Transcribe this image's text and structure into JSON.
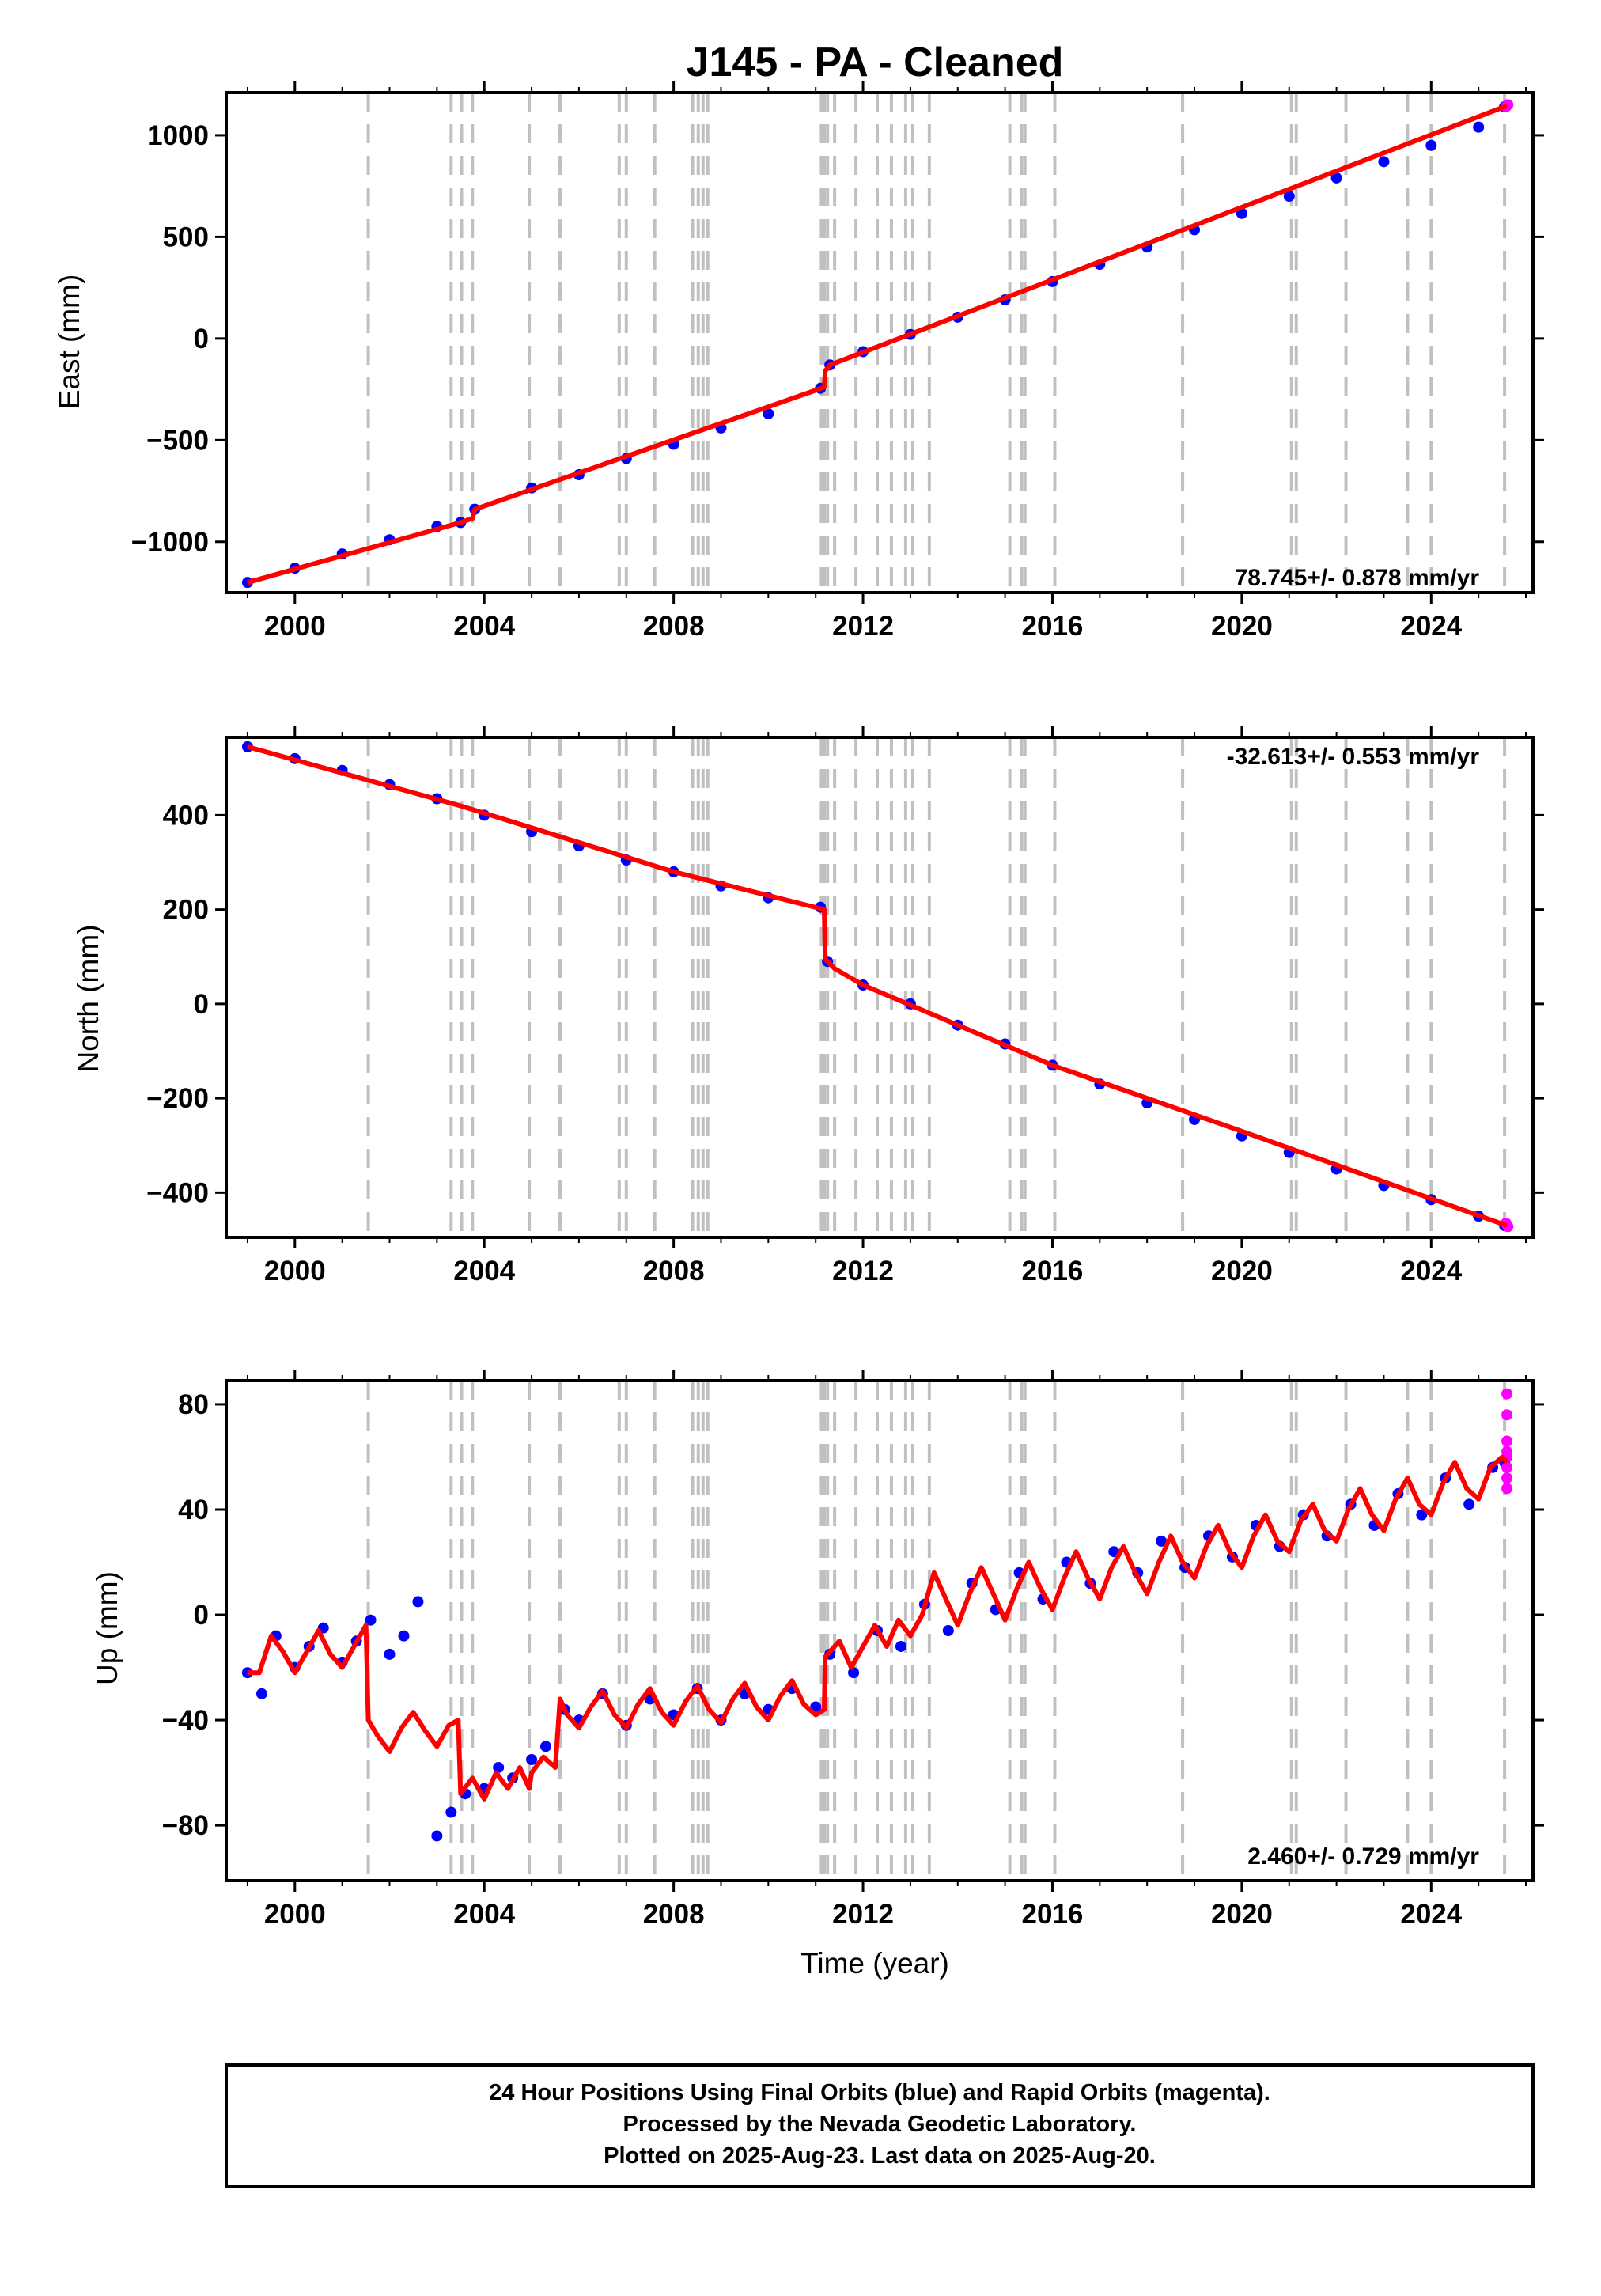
{
  "title": "J145  - PA - Cleaned",
  "footer": {
    "line1": "24 Hour Positions Using Final Orbits (blue) and Rapid Orbits (magenta).",
    "line2": "Processed by the Nevada Geodetic Laboratory.",
    "line3": "Plotted on 2025-Aug-23. Last data on 2025-Aug-20."
  },
  "colors": {
    "final_orbits": "#0000ff",
    "rapid_orbits": "#ff00ff",
    "model": "#ff0000",
    "event_lines": "#c0c0c0"
  },
  "chart_data": [
    {
      "type": "scatter",
      "id": "east",
      "title": "",
      "xlabel": "",
      "ylabel": "East (mm)",
      "xlim": [
        1998.55,
        2026.15
      ],
      "ylim": [
        -1250,
        1210
      ],
      "xticks": [
        2000,
        2004,
        2008,
        2012,
        2016,
        2020,
        2024
      ],
      "xtick_labels": [
        "2000",
        "2004",
        "2008",
        "2012",
        "2016",
        "2020",
        "2024"
      ],
      "yticks": [
        -1000,
        -500,
        0,
        500,
        1000
      ],
      "ytick_labels": [
        "−1000",
        "−500",
        "0",
        "500",
        "1000"
      ],
      "rate_label": "78.745+/- 0.878 mm/yr",
      "rate_position": "bottom-right",
      "grid": false,
      "model_line": {
        "color": "red",
        "x": [
          1999.0,
          2003.5,
          2003.75,
          2003.8,
          2011.18,
          2011.2,
          2011.3,
          2025.6
        ],
        "y": [
          -1200,
          -905,
          -885,
          -840,
          -240,
          -160,
          -130,
          1145
        ]
      },
      "final_orbits": {
        "color": "blue",
        "x": [
          1999.0,
          2000.0,
          2001.0,
          2002.0,
          2003.0,
          2003.5,
          2003.8,
          2005.0,
          2006.0,
          2007.0,
          2008.0,
          2009.0,
          2010.0,
          2011.1,
          2011.3,
          2012.0,
          2013.0,
          2014.0,
          2015.0,
          2016.0,
          2017.0,
          2018.0,
          2019.0,
          2020.0,
          2021.0,
          2022.0,
          2023.0,
          2024.0,
          2025.0,
          2025.55
        ],
        "y": [
          -1200,
          -1130,
          -1060,
          -990,
          -925,
          -905,
          -840,
          -735,
          -670,
          -590,
          -520,
          -440,
          -370,
          -245,
          -130,
          -65,
          20,
          105,
          190,
          280,
          365,
          450,
          535,
          615,
          700,
          790,
          870,
          950,
          1040,
          1140
        ]
      },
      "rapid_orbits": {
        "color": "magenta",
        "x": [
          2025.58,
          2025.62
        ],
        "y": [
          1140,
          1150
        ]
      }
    },
    {
      "type": "scatter",
      "id": "north",
      "title": "",
      "xlabel": "",
      "ylabel": "North (mm)",
      "xlim": [
        1998.55,
        2026.15
      ],
      "ylim": [
        -495,
        565
      ],
      "xticks": [
        2000,
        2004,
        2008,
        2012,
        2016,
        2020,
        2024
      ],
      "xtick_labels": [
        "2000",
        "2004",
        "2008",
        "2012",
        "2016",
        "2020",
        "2024"
      ],
      "yticks": [
        -400,
        -200,
        0,
        200,
        400
      ],
      "ytick_labels": [
        "−400",
        "−200",
        "0",
        "200",
        "400"
      ],
      "rate_label": "-32.613+/- 0.553 mm/yr",
      "rate_position": "top-right",
      "grid": false,
      "model_line": {
        "color": "red",
        "x": [
          1999.0,
          2003.5,
          2008.0,
          2011.18,
          2011.2,
          2011.4,
          2012.0,
          2016.0,
          2020.0,
          2025.6
        ],
        "y": [
          545,
          420,
          280,
          200,
          95,
          75,
          40,
          -130,
          -270,
          -470
        ]
      },
      "final_orbits": {
        "color": "blue",
        "x": [
          1999.0,
          2000.0,
          2001.0,
          2002.0,
          2003.0,
          2004.0,
          2005.0,
          2006.0,
          2007.0,
          2008.0,
          2009.0,
          2010.0,
          2011.1,
          2011.25,
          2012.0,
          2013.0,
          2014.0,
          2015.0,
          2016.0,
          2017.0,
          2018.0,
          2019.0,
          2020.0,
          2021.0,
          2022.0,
          2023.0,
          2024.0,
          2025.0,
          2025.55
        ],
        "y": [
          545,
          520,
          495,
          465,
          435,
          400,
          365,
          335,
          305,
          280,
          250,
          225,
          205,
          90,
          40,
          0,
          -45,
          -85,
          -130,
          -170,
          -210,
          -245,
          -280,
          -315,
          -350,
          -385,
          -415,
          -450,
          -470
        ]
      },
      "rapid_orbits": {
        "color": "magenta",
        "x": [
          2025.58,
          2025.62
        ],
        "y": [
          -465,
          -472
        ]
      }
    },
    {
      "type": "scatter",
      "id": "up",
      "title": "",
      "xlabel": "Time (year)",
      "ylabel": "Up (mm)",
      "xlim": [
        1998.55,
        2026.15
      ],
      "ylim": [
        -101,
        89
      ],
      "xticks": [
        2000,
        2004,
        2008,
        2012,
        2016,
        2020,
        2024
      ],
      "xtick_labels": [
        "2000",
        "2004",
        "2008",
        "2012",
        "2016",
        "2020",
        "2024"
      ],
      "yticks": [
        -80,
        -40,
        0,
        40,
        80
      ],
      "ytick_labels": [
        "−80",
        "−40",
        "0",
        "40",
        "80"
      ],
      "rate_label": "2.460+/- 0.729 mm/yr",
      "rate_position": "bottom-right",
      "grid": false,
      "model_line": {
        "color": "red",
        "x": [
          1999.0,
          1999.25,
          1999.5,
          1999.75,
          2000.0,
          2000.25,
          2000.5,
          2000.75,
          2001.0,
          2001.25,
          2001.5,
          2001.55,
          2001.75,
          2002.0,
          2002.25,
          2002.5,
          2002.75,
          2003.0,
          2003.25,
          2003.45,
          2003.5,
          2003.75,
          2004.0,
          2004.25,
          2004.5,
          2004.75,
          2004.95,
          2005.0,
          2005.25,
          2005.5,
          2005.6,
          2005.75,
          2006.0,
          2006.25,
          2006.5,
          2006.75,
          2007.0,
          2007.25,
          2007.5,
          2007.75,
          2008.0,
          2008.25,
          2008.5,
          2008.75,
          2009.0,
          2009.25,
          2009.5,
          2009.75,
          2010.0,
          2010.25,
          2010.5,
          2010.75,
          2011.0,
          2011.18,
          2011.2,
          2011.5,
          2011.75,
          2012.0,
          2012.25,
          2012.5,
          2012.75,
          2013.0,
          2013.25,
          2013.5,
          2013.75,
          2014.0,
          2014.25,
          2014.5,
          2014.75,
          2015.0,
          2015.25,
          2015.5,
          2015.75,
          2016.0,
          2016.25,
          2016.5,
          2016.75,
          2017.0,
          2017.25,
          2017.5,
          2017.75,
          2018.0,
          2018.25,
          2018.5,
          2018.75,
          2019.0,
          2019.25,
          2019.5,
          2019.75,
          2020.0,
          2020.25,
          2020.5,
          2020.75,
          2021.0,
          2021.25,
          2021.5,
          2021.75,
          2022.0,
          2022.25,
          2022.5,
          2022.75,
          2023.0,
          2023.25,
          2023.5,
          2023.75,
          2024.0,
          2024.25,
          2024.5,
          2024.75,
          2025.0,
          2025.25,
          2025.5,
          2025.6
        ],
        "y": [
          -22,
          -22,
          -8,
          -14,
          -22,
          -14,
          -6,
          -15,
          -20,
          -12,
          -4,
          -40,
          -46,
          -52,
          -43,
          -37,
          -44,
          -50,
          -42,
          -40,
          -68,
          -62,
          -70,
          -60,
          -66,
          -58,
          -66,
          -60,
          -54,
          -58,
          -32,
          -38,
          -43,
          -35,
          -29,
          -38,
          -43,
          -34,
          -28,
          -37,
          -42,
          -33,
          -27,
          -36,
          -41,
          -32,
          -26,
          -35,
          -40,
          -31,
          -25,
          -34,
          -38,
          -36,
          -16,
          -10,
          -20,
          -12,
          -4,
          -12,
          -2,
          -8,
          0,
          16,
          6,
          -4,
          8,
          18,
          8,
          -2,
          10,
          20,
          10,
          2,
          14,
          24,
          14,
          6,
          18,
          26,
          16,
          8,
          20,
          30,
          20,
          14,
          26,
          34,
          24,
          18,
          30,
          38,
          28,
          24,
          36,
          42,
          32,
          28,
          40,
          48,
          38,
          32,
          44,
          52,
          42,
          38,
          50,
          58,
          48,
          44,
          56,
          60,
          58
        ]
      },
      "final_orbits": {
        "color": "blue",
        "x": [
          1999.0,
          1999.3,
          1999.6,
          2000.0,
          2000.3,
          2000.6,
          2001.0,
          2001.3,
          2001.6,
          2002.0,
          2002.3,
          2002.6,
          2003.0,
          2003.3,
          2003.6,
          2004.0,
          2004.3,
          2004.6,
          2005.0,
          2005.3,
          2005.7,
          2006.0,
          2006.5,
          2007.0,
          2007.5,
          2008.0,
          2008.5,
          2009.0,
          2009.5,
          2010.0,
          2010.5,
          2011.0,
          2011.3,
          2011.8,
          2012.3,
          2012.8,
          2013.3,
          2013.8,
          2014.3,
          2014.8,
          2015.3,
          2015.8,
          2016.3,
          2016.8,
          2017.3,
          2017.8,
          2018.3,
          2018.8,
          2019.3,
          2019.8,
          2020.3,
          2020.8,
          2021.3,
          2021.8,
          2022.3,
          2022.8,
          2023.3,
          2023.8,
          2024.3,
          2024.8,
          2025.3,
          2025.55
        ],
        "y": [
          -22,
          -30,
          -8,
          -20,
          -12,
          -5,
          -18,
          -10,
          -2,
          -15,
          -8,
          5,
          -84,
          -75,
          -68,
          -66,
          -58,
          -62,
          -55,
          -50,
          -36,
          -40,
          -30,
          -42,
          -32,
          -38,
          -28,
          -40,
          -30,
          -36,
          -28,
          -35,
          -15,
          -22,
          -6,
          -12,
          4,
          -6,
          12,
          2,
          16,
          6,
          20,
          12,
          24,
          16,
          28,
          18,
          30,
          22,
          34,
          26,
          38,
          30,
          42,
          34,
          46,
          38,
          52,
          42,
          56,
          58
        ]
      },
      "rapid_orbits": {
        "color": "magenta",
        "x": [
          2025.6,
          2025.6,
          2025.6,
          2025.6,
          2025.6,
          2025.6,
          2025.6,
          2025.6
        ],
        "y": [
          84,
          76,
          66,
          60,
          56,
          52,
          48,
          62
        ]
      }
    }
  ],
  "event_lines": [
    2001.55,
    2003.3,
    2003.52,
    2003.75,
    2004.95,
    2005.6,
    2006.85,
    2007.0,
    2007.6,
    2008.4,
    2008.52,
    2008.62,
    2008.72,
    2011.12,
    2011.18,
    2011.25,
    2011.4,
    2011.85,
    2012.3,
    2012.6,
    2012.9,
    2013.05,
    2013.4,
    2015.1,
    2015.35,
    2015.42,
    2016.05,
    2018.75,
    2021.05,
    2021.15,
    2022.2,
    2023.5,
    2024.0,
    2025.55
  ]
}
